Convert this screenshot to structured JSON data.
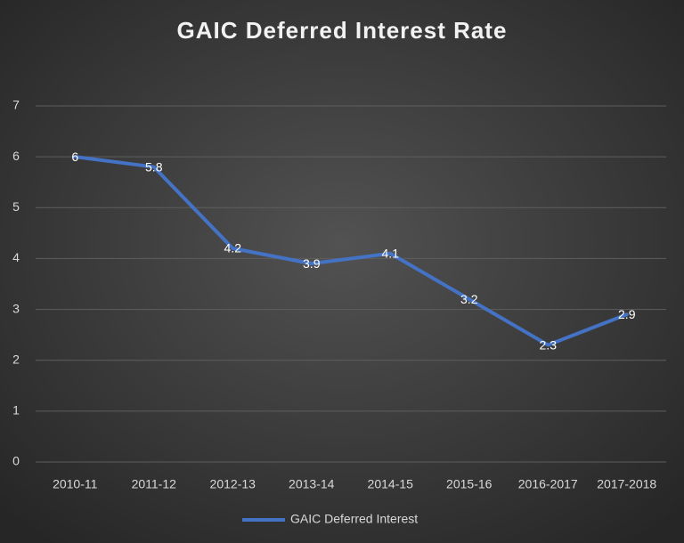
{
  "chart_data": {
    "type": "line",
    "title": "GAIC Deferred Interest Rate",
    "categories": [
      "2010-11",
      "2011-12",
      "2012-13",
      "2013-14",
      "2014-15",
      "2015-16",
      "2016-2017",
      "2017-2018"
    ],
    "series": [
      {
        "name": "GAIC Deferred Interest",
        "color": "#4472c4",
        "values": [
          6,
          5.8,
          4.2,
          3.9,
          4.1,
          3.2,
          2.3,
          2.9
        ]
      }
    ],
    "ylim": [
      0,
      7
    ],
    "yticks": [
      0,
      1,
      2,
      3,
      4,
      5,
      6,
      7
    ],
    "grid": true,
    "legend": "bottom",
    "data_labels": true
  }
}
